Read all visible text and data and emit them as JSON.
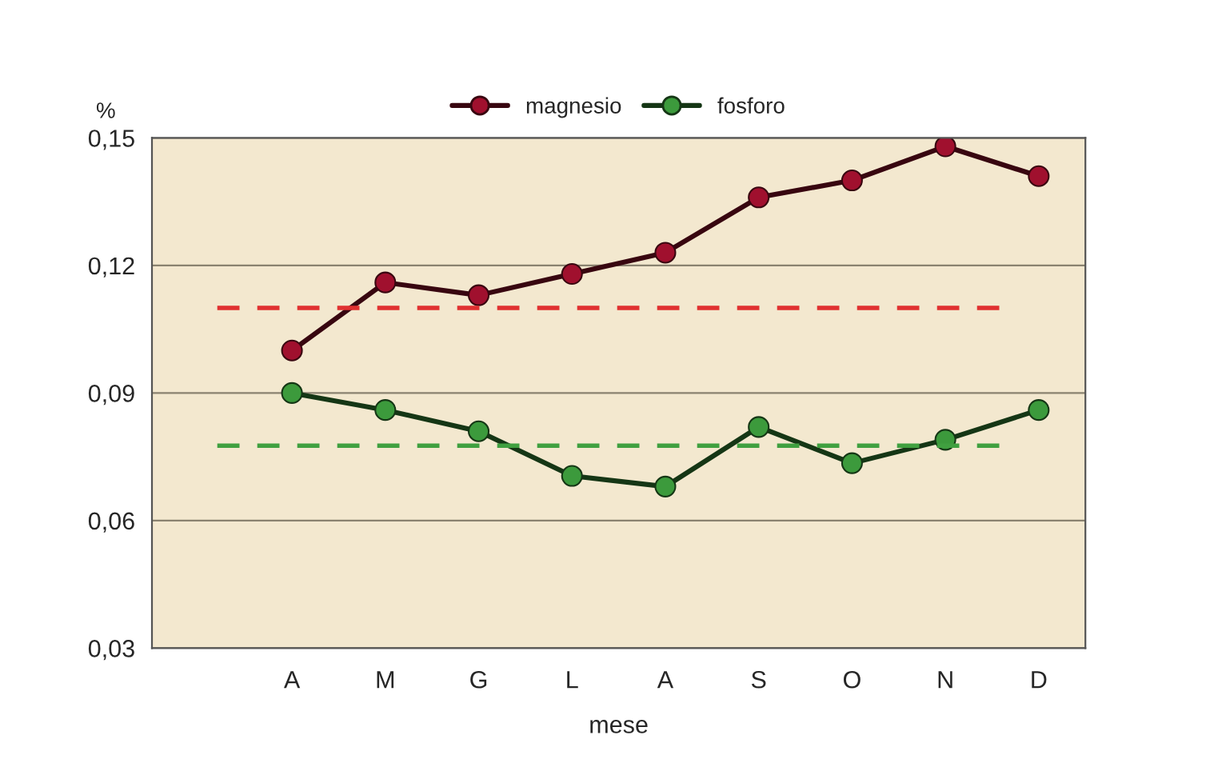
{
  "chart_data": {
    "type": "line",
    "ylabel": "%",
    "xlabel": "mese",
    "categories": [
      null,
      "A",
      "M",
      "G",
      "L",
      "A",
      "S",
      "O",
      "N",
      "D"
    ],
    "series": [
      {
        "name": "magnesio",
        "color": "#a0102e",
        "values": [
          null,
          0.1,
          0.116,
          0.113,
          0.118,
          0.123,
          0.136,
          0.14,
          0.148,
          0.141
        ]
      },
      {
        "name": "fosforo",
        "color": "#3c9a3c",
        "values": [
          null,
          0.09,
          0.086,
          0.081,
          0.0705,
          0.068,
          0.082,
          0.0735,
          0.079,
          0.086
        ]
      }
    ],
    "ref_lines": [
      {
        "axis": "y",
        "value": 0.11,
        "color": "#e03030",
        "line_style": "dashed"
      },
      {
        "axis": "y",
        "value": 0.0776,
        "color": "#40a040",
        "line_style": "dashed"
      }
    ],
    "ylim": [
      0.03,
      0.15
    ],
    "yticks": [
      {
        "value": 0.03,
        "label": "0,03"
      },
      {
        "value": 0.06,
        "label": "0,06"
      },
      {
        "value": 0.09,
        "label": "0,09"
      },
      {
        "value": 0.12,
        "label": "0,12"
      },
      {
        "value": 0.15,
        "label": "0,15"
      }
    ],
    "grid": "y",
    "legend": "top",
    "marker": "circle",
    "line_style": "solid"
  }
}
